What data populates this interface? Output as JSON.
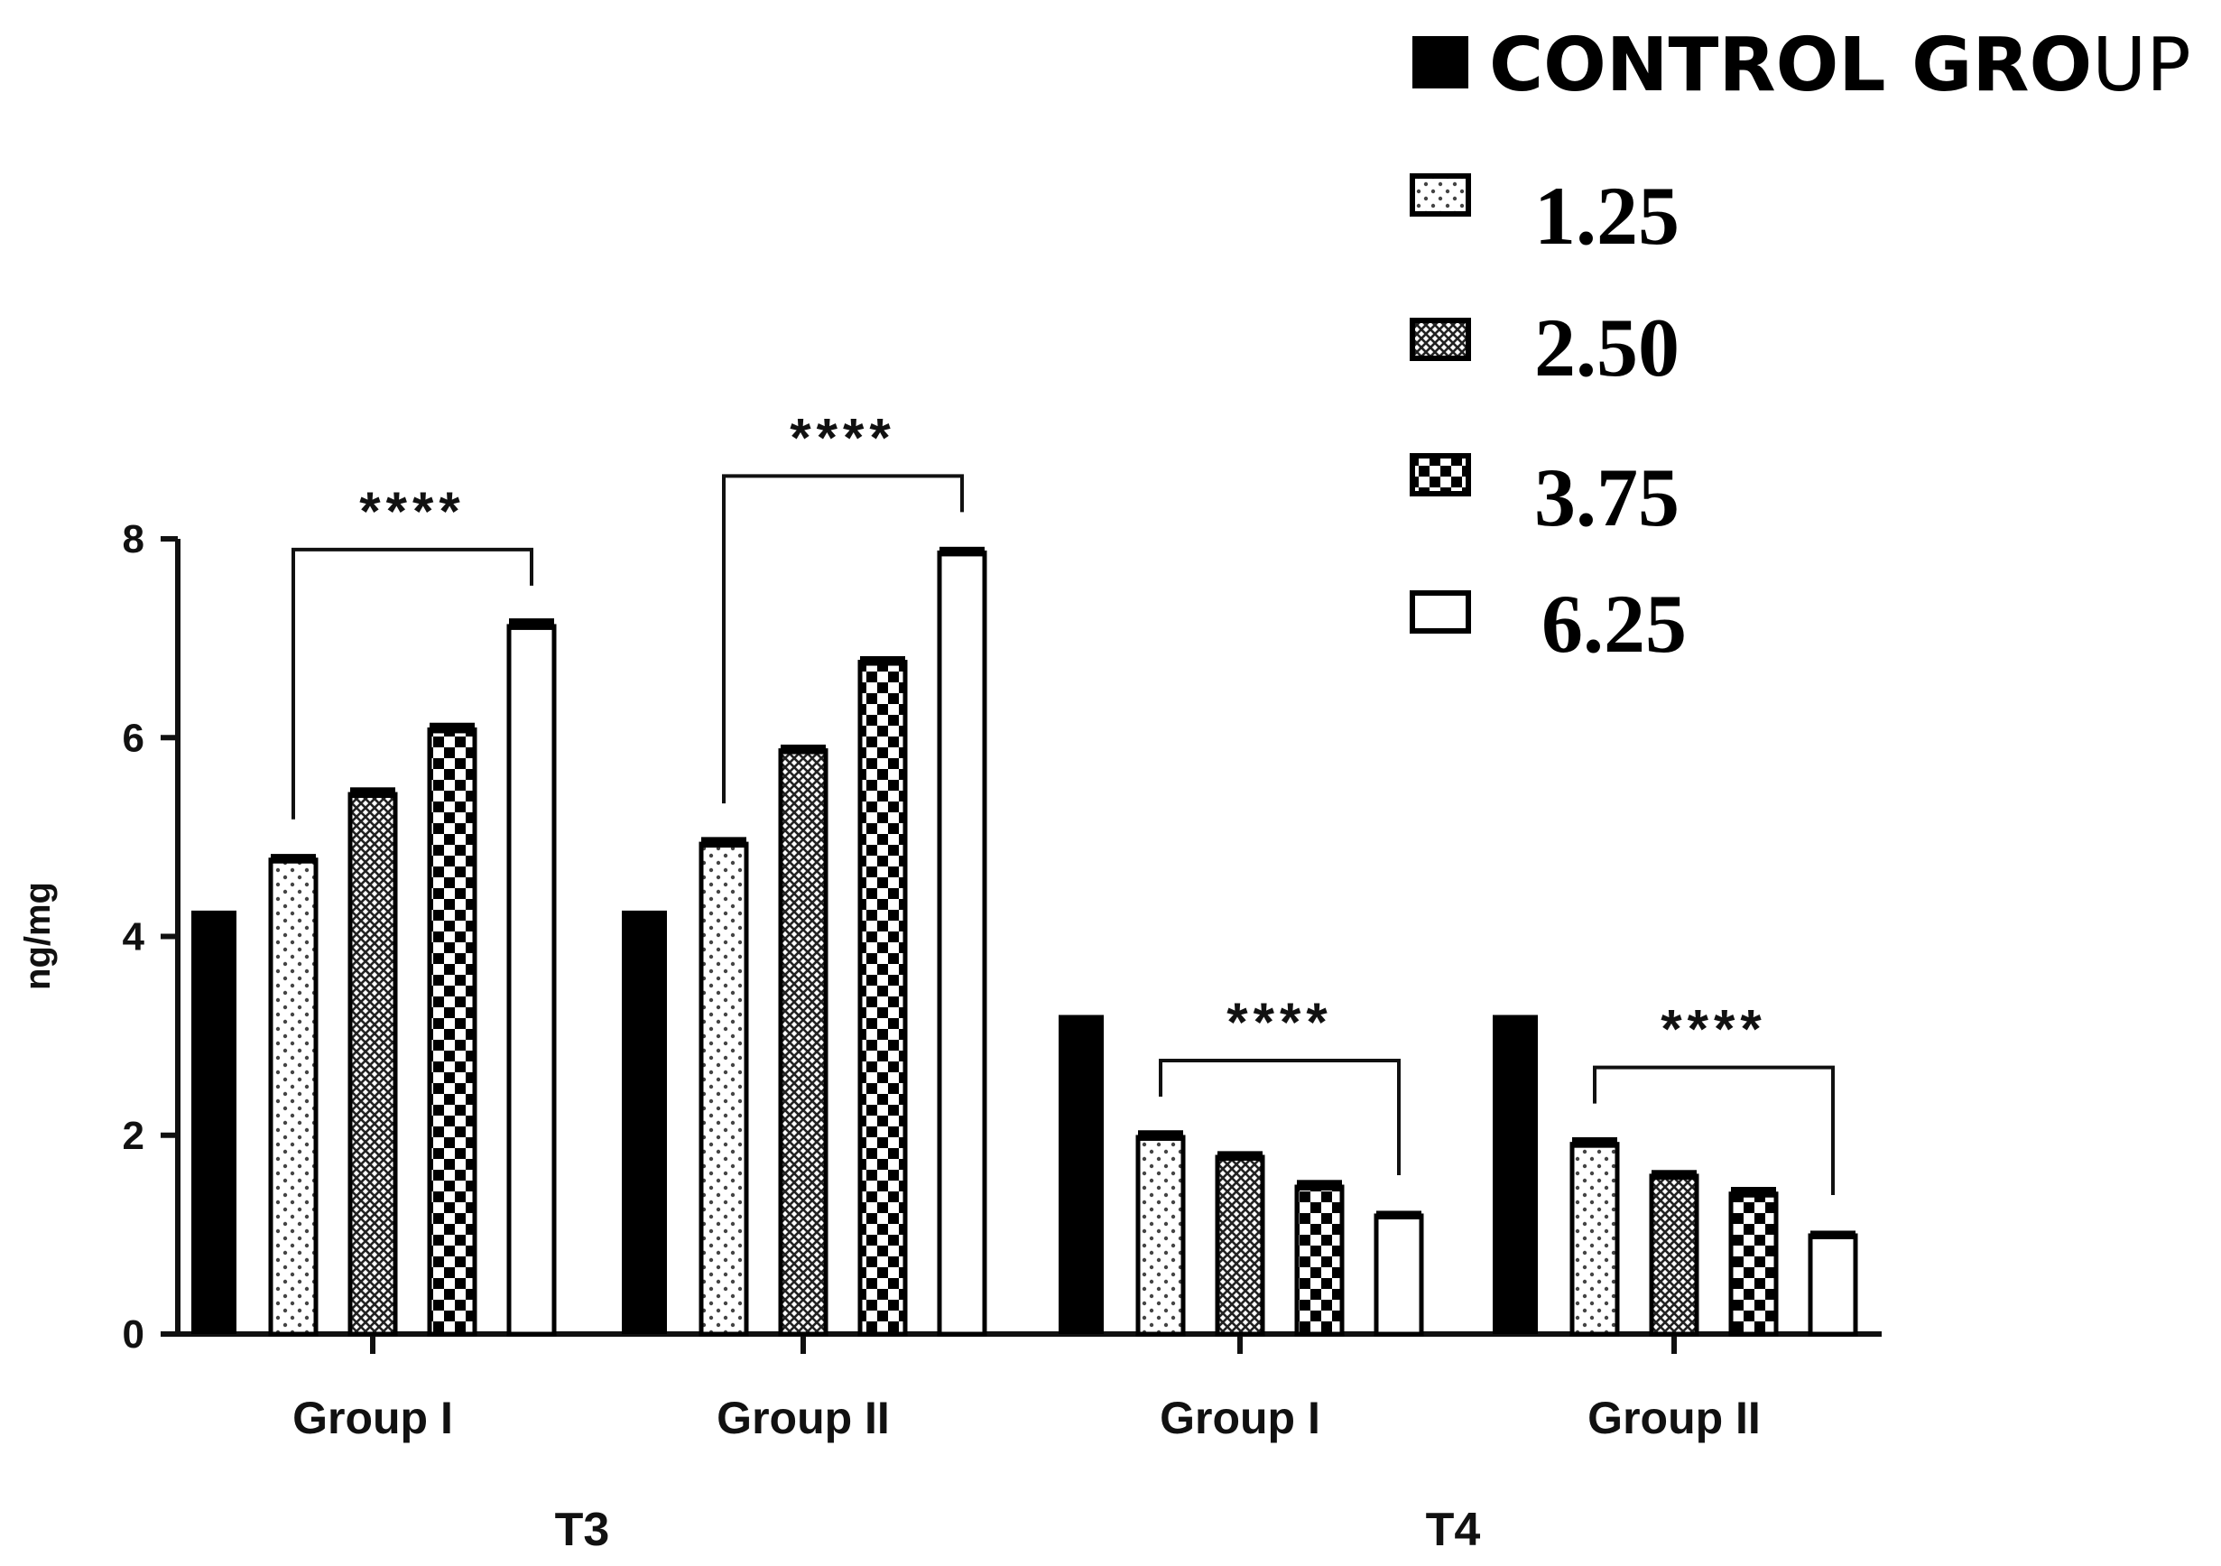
{
  "chart_data": {
    "type": "bar",
    "title": "",
    "ylabel": "ng/mg",
    "xlabel": "",
    "ylim": [
      0,
      8
    ],
    "yticks": [
      "0",
      "2",
      "4",
      "6",
      "8"
    ],
    "categories": [
      "Group I",
      "Group II",
      "Group I",
      "Group II"
    ],
    "category_groups": [
      {
        "label": "T3",
        "categories": [
          0,
          1
        ]
      },
      {
        "label": "T4",
        "categories": [
          2,
          3
        ]
      }
    ],
    "series": [
      {
        "name": "CONTROL GROUP",
        "pattern": "solid",
        "values": [
          4.2,
          4.2,
          3.15,
          3.15
        ],
        "errors": [
          0.06,
          0.06,
          0.06,
          0.06
        ]
      },
      {
        "name": "1.25",
        "pattern": "dots",
        "values": [
          4.77,
          4.93,
          1.98,
          1.91
        ],
        "errors": [
          0.06,
          0.07,
          0.07,
          0.07
        ]
      },
      {
        "name": "2.50",
        "pattern": "crosshatch",
        "values": [
          5.43,
          5.87,
          1.78,
          1.59
        ],
        "errors": [
          0.07,
          0.06,
          0.06,
          0.06
        ]
      },
      {
        "name": "3.75",
        "pattern": "checker",
        "values": [
          6.08,
          6.76,
          1.48,
          1.41
        ],
        "errors": [
          0.07,
          0.06,
          0.07,
          0.07
        ]
      },
      {
        "name": "6.25",
        "pattern": "open",
        "values": [
          7.12,
          7.86,
          1.19,
          0.99
        ],
        "errors": [
          0.08,
          0.06,
          0.05,
          0.05
        ]
      }
    ],
    "significance": [
      {
        "label": "****",
        "category": 0,
        "from_series": 1,
        "to_series": 4
      },
      {
        "label": "****",
        "category": 1,
        "from_series": 1,
        "to_series": 4
      },
      {
        "label": "****",
        "category": 2,
        "from_series": 1,
        "to_series": 4
      },
      {
        "label": "****",
        "category": 3,
        "from_series": 1,
        "to_series": 4
      }
    ],
    "legend": {
      "position": "top-right",
      "entries": [
        {
          "label_bold": "CONTROL GRO",
          "label_rest": "UP",
          "pattern": "solid"
        },
        {
          "label": "1.25",
          "pattern": "dots"
        },
        {
          "label": "2.50",
          "pattern": "crosshatch"
        },
        {
          "label": "3.75",
          "pattern": "checker"
        },
        {
          "label": "6.25",
          "pattern": "open"
        }
      ]
    }
  }
}
